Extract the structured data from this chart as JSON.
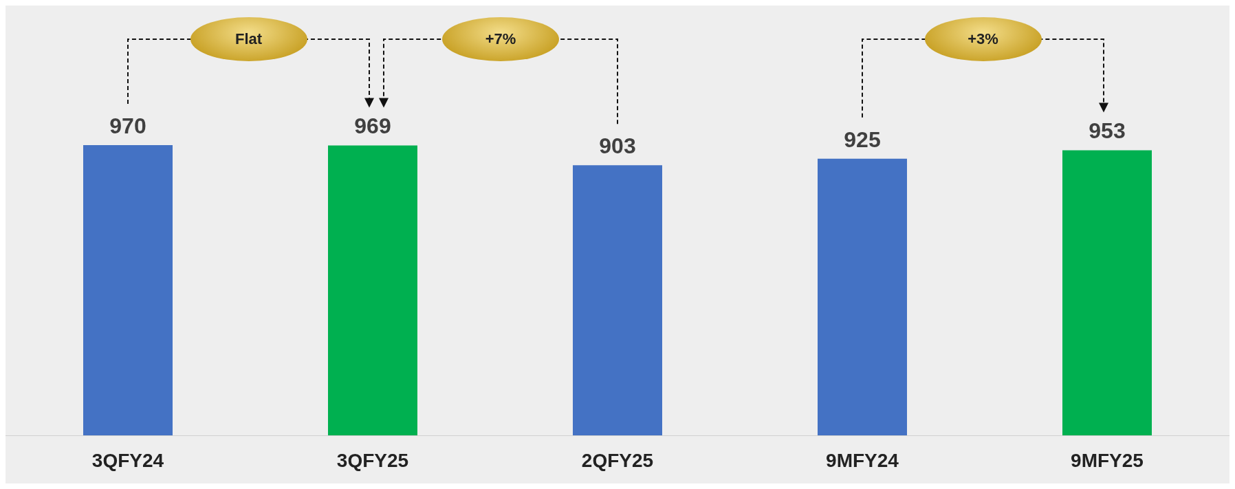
{
  "chart_data": {
    "type": "bar",
    "categories": [
      "3QFY24",
      "3QFY25",
      "2QFY25",
      "9MFY24",
      "9MFY25"
    ],
    "values": [
      970,
      969,
      903,
      925,
      953
    ],
    "colors": [
      "#4472c4",
      "#00b050",
      "#4472c4",
      "#4472c4",
      "#00b050"
    ],
    "data_labels": true,
    "annotations": [
      "Flat",
      "+7%",
      "+3%"
    ]
  }
}
